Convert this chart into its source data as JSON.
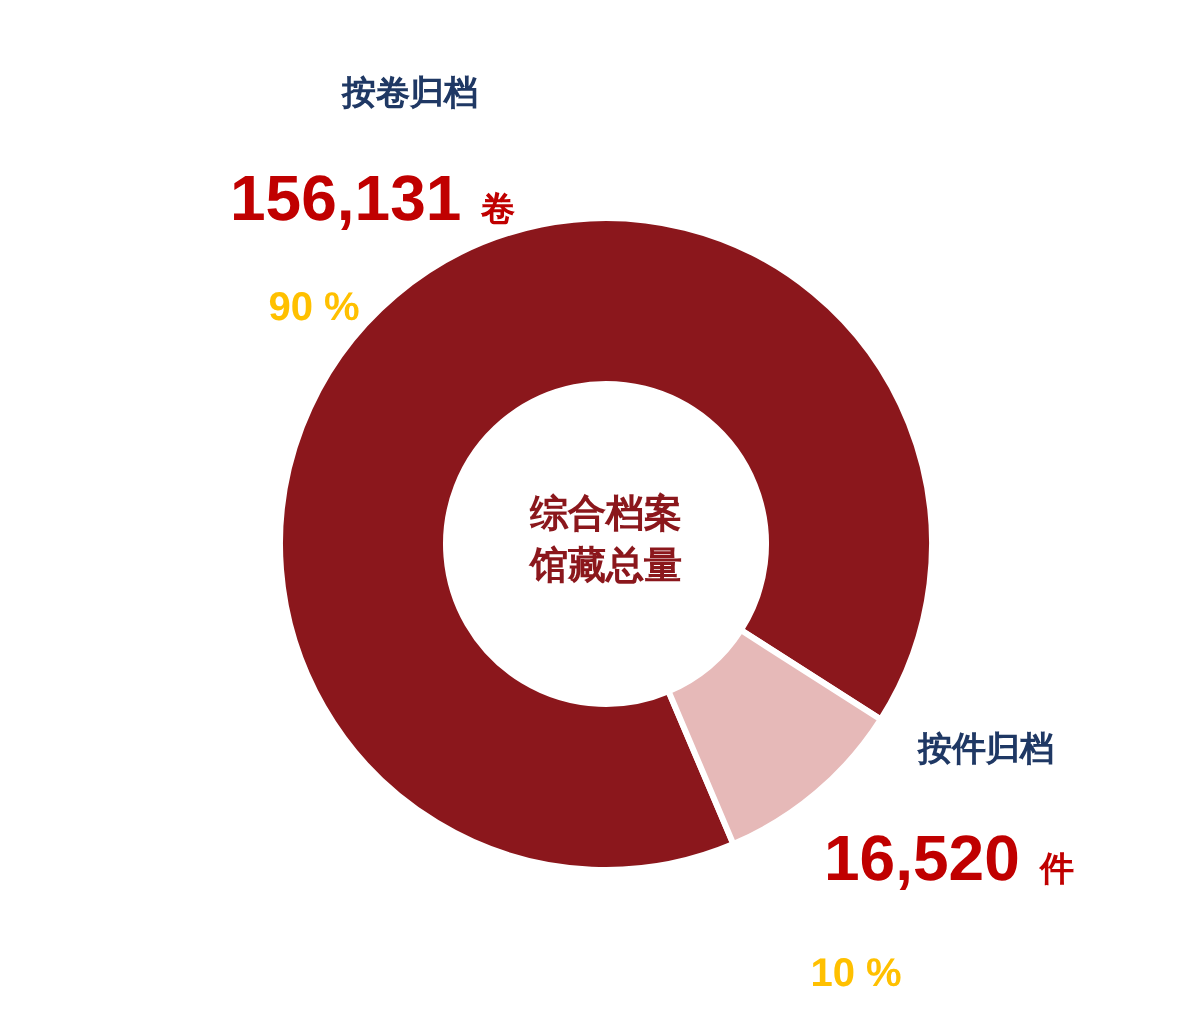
{
  "chart_data": {
    "type": "donut",
    "title": "综合档案馆藏总量",
    "categories": [
      "按卷归档",
      "按件归档"
    ],
    "values": [
      156131,
      16520
    ],
    "colors": [
      "#8b171c",
      "#e6b9b8"
    ],
    "value_labels": [
      "156,131 卷",
      "16,520 件"
    ],
    "annotations": [
      "90 %",
      "10 %"
    ]
  }
}
